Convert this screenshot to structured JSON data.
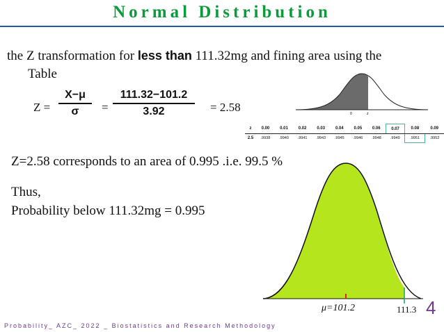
{
  "slide": {
    "title": "Normal Distribution",
    "intro": {
      "part1": "the Z transformation for ",
      "bold": "less than",
      "part2": " 111.32mg  and fining area using the",
      "line2": "Table"
    },
    "equation": {
      "z_equals": "Z =",
      "formula_num": "X−μ",
      "formula_den": "σ",
      "eq2": "=",
      "value_num": "111.32−101.2",
      "value_den": "3.92",
      "result": "= 2.58"
    },
    "sentence": "Z=2.58 corresponds to an area of 0.995 .i.e. 99.5 %",
    "thus": "Thus,",
    "probability_line": "Probability below 111.32mg = 0.995",
    "footer": "Probability_ AZC_   2022   _ Biostatistics and Research Methodology",
    "page_number": "4",
    "big_curve": {
      "mu_label": "μ=101.2",
      "x_label": "111.3",
      "fill_color": "#b5e51d",
      "mu_marker_color": "#e02020",
      "x_marker_color": "#20a060"
    },
    "small_curve": {
      "zero_label": "0",
      "z_label": "z"
    },
    "z_table": {
      "columns": [
        "z",
        "0.00",
        "0.01",
        "0.02",
        "0.03",
        "0.04",
        "0.05",
        "0.06",
        "0.07",
        "0.08",
        "0.09"
      ],
      "row_label": "2.5",
      "values": [
        ".9938",
        ".9940",
        ".9941",
        ".9943",
        ".9945",
        ".9946",
        ".9948",
        ".9949",
        ".9951",
        ".9952"
      ],
      "highlight_column": "0.08",
      "highlight_color": "#4fb3a6"
    }
  }
}
